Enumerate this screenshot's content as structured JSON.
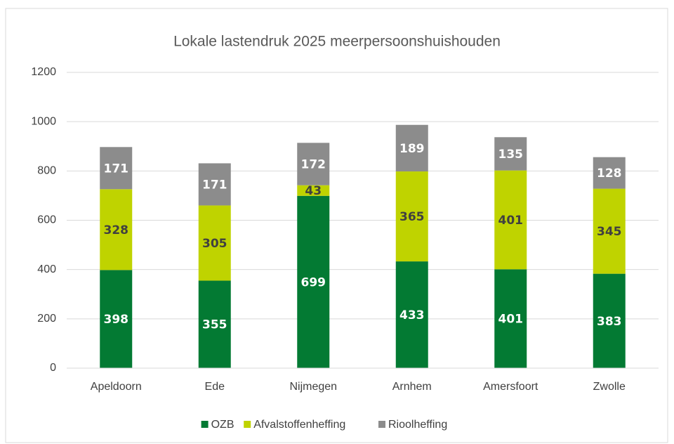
{
  "chart_data": {
    "type": "stacked_bar",
    "title": "Lokale lastendruk 2025 meerpersoonshuishouden",
    "categories": [
      "Apeldoorn",
      "Ede",
      "Nijmegen",
      "Arnhem",
      "Amersfoort",
      "Zwolle"
    ],
    "series": [
      {
        "name": "OZB",
        "color": "#037a33",
        "values": [
          398,
          355,
          699,
          433,
          401,
          383
        ]
      },
      {
        "name": "Afvalstoffenheffing",
        "color": "#bfd300",
        "values": [
          328,
          305,
          43,
          365,
          401,
          345
        ]
      },
      {
        "name": "Rioolheffing",
        "color": "#8c8c8c",
        "values": [
          171,
          171,
          172,
          189,
          135,
          128
        ]
      }
    ],
    "ylim": [
      0,
      1200
    ],
    "yticks": [
      0,
      200,
      400,
      600,
      800,
      1000,
      1200
    ],
    "grid": true,
    "legend": "bottom"
  }
}
